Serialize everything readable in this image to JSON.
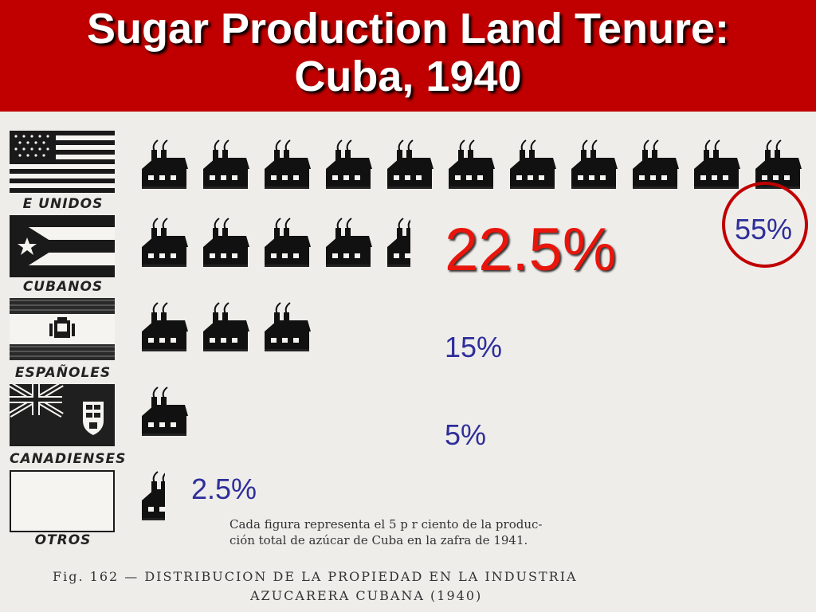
{
  "title": {
    "line1": "Sugar Production Land Tenure:",
    "line2": "Cuba, 1940"
  },
  "chart_data": {
    "type": "bar",
    "unit_description": "Cada figura representa el 5 p r ciento de la producción total de azúcar de Cuba en la zafra de 1941.",
    "categories": [
      "E UNIDOS",
      "CUBANOS",
      "ESPAÑOLES",
      "CANADIENSES",
      "OTROS"
    ],
    "values": [
      55,
      22.5,
      15,
      5,
      2.5
    ],
    "value_labels": [
      "55%",
      "22.5%",
      "15%",
      "5%",
      "2.5%"
    ],
    "highlighted": "55%",
    "colors": {
      "title_bar": "#c00000",
      "highlight_label": "#e8150c",
      "labels": "#2e2e9a",
      "circle": "#c00000",
      "icon": "#111111"
    }
  },
  "caption": {
    "line1": "Cada figura representa el 5 p r ciento de la produc-",
    "line2": "ción total de azúcar de Cuba en la zafra de 1941."
  },
  "figure": {
    "line1": "Fig. 162 — DISTRIBUCION DE LA PROPIEDAD EN LA INDUSTRIA",
    "line2": "AZUCARERA CUBANA (1940)"
  }
}
